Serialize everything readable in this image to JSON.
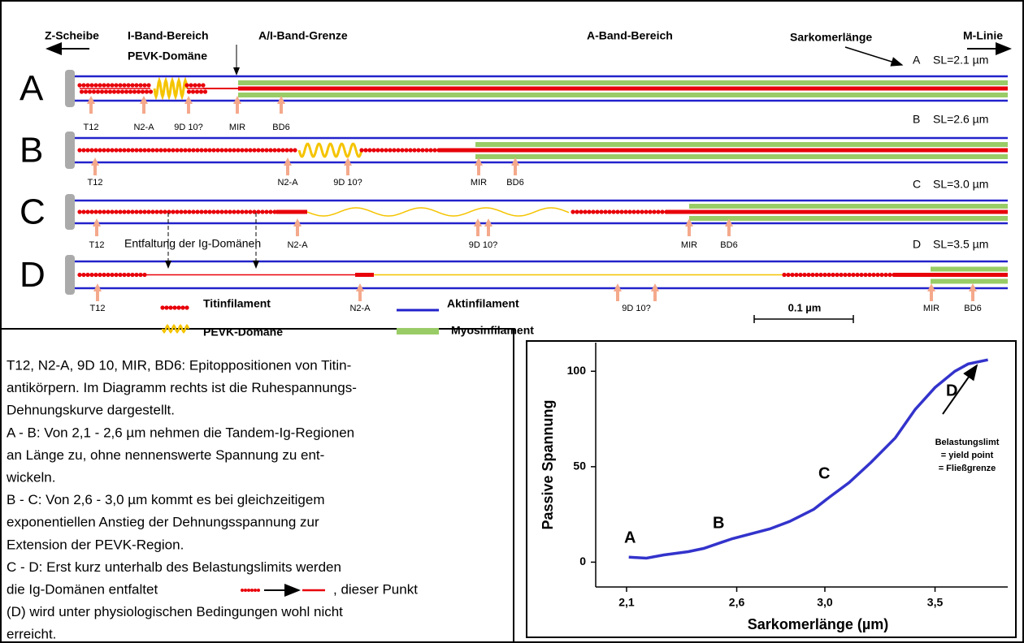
{
  "header": {
    "z_scheibe": "Z-Scheibe",
    "i_band": "I-Band-Bereich",
    "pevk": "PEVK-Domäne",
    "ai_grenze": "A/I-Band-Grenze",
    "a_band": "A-Band-Bereich",
    "sarkomer": "Sarkomerlänge",
    "m_linie": "M-Linie"
  },
  "rows": [
    {
      "letter": "A",
      "sl_letter": "A",
      "sl": "SL=2.1 µm",
      "epitopes": [
        "T12",
        "N2-A",
        "9D 10?",
        "MIR",
        "BD6"
      ]
    },
    {
      "letter": "B",
      "sl_letter": "B",
      "sl": "SL=2.6 µm",
      "epitopes": [
        "T12",
        "N2-A",
        "9D 10?",
        "MIR",
        "BD6"
      ]
    },
    {
      "letter": "C",
      "sl_letter": "C",
      "sl": "SL=3.0 µm",
      "epitopes": [
        "T12",
        "N2-A",
        "9D 10?",
        "MIR",
        "BD6"
      ]
    },
    {
      "letter": "D",
      "sl_letter": "D",
      "sl": "SL=3.5 µm",
      "epitopes": [
        "T12",
        "N2-A",
        "9D 10?",
        "MIR",
        "BD6"
      ]
    }
  ],
  "unfolding": "Entfaltung der Ig-Domänen",
  "legend": {
    "titin": "Titinfilament",
    "pevk": "PEVK-Domäne",
    "aktin": "Aktinfilament",
    "myosin": "Myosinfilament",
    "scale": "0.1 µm"
  },
  "text": {
    "lines": [
      "T12, N2-A, 9D 10, MIR, BD6: Epitoppositionen von Titin-",
      "antikörpern. Im Diagramm rechts ist die Ruhespannungs-",
      "Dehnungskurve dargestellt.",
      "A - B: Von 2,1 - 2,6 µm nehmen die Tandem-Ig-Regionen",
      "an Länge zu, ohne nennenswerte Spannung zu ent-",
      "wickeln.",
      "B - C: Von 2,6 - 3,0 µm kommt es bei gleichzeitigem",
      "exponentiellen Anstieg der Dehnungsspannung zur",
      "Extension der PEVK-Region.",
      "C - D: Erst kurz unterhalb des Belastungslimits werden",
      "die Ig-Domänen entfaltet",
      "(D) wird unter physiologischen Bedingungen wohl nicht",
      "erreicht."
    ],
    "after_icon": ", dieser Punkt"
  },
  "chart_data": {
    "type": "line",
    "x_label": "Sarkomerlänge (µm)",
    "y_label": "Passive Spannung",
    "x": [
      2.11,
      2.19,
      2.27,
      2.38,
      2.45,
      2.58,
      2.75,
      2.84,
      2.95,
      3.02,
      3.11,
      3.21,
      3.32,
      3.41,
      3.5,
      3.59,
      3.65,
      3.74
    ],
    "values": [
      2.6,
      2.1,
      3.8,
      5.5,
      7.2,
      12.3,
      17.4,
      21.3,
      27.7,
      34,
      41.7,
      52.3,
      65.1,
      80,
      91.5,
      100,
      103.8,
      106
    ],
    "color": "#3333cc",
    "xlim": [
      1.96,
      3.83
    ],
    "ylim": [
      -13,
      115
    ],
    "xticks": [
      {
        "value": 2.1,
        "label": "2,1"
      },
      {
        "value": 2.6,
        "label": "2,6"
      },
      {
        "value": 3.0,
        "label": "3,0"
      },
      {
        "value": 3.5,
        "label": "3,5"
      }
    ],
    "yticks": [
      0,
      50,
      100
    ],
    "annotations": [
      "A",
      "B",
      "C",
      "D"
    ],
    "note": [
      "Belastungslimt",
      "= yield point",
      "= Fließgrenze"
    ]
  }
}
